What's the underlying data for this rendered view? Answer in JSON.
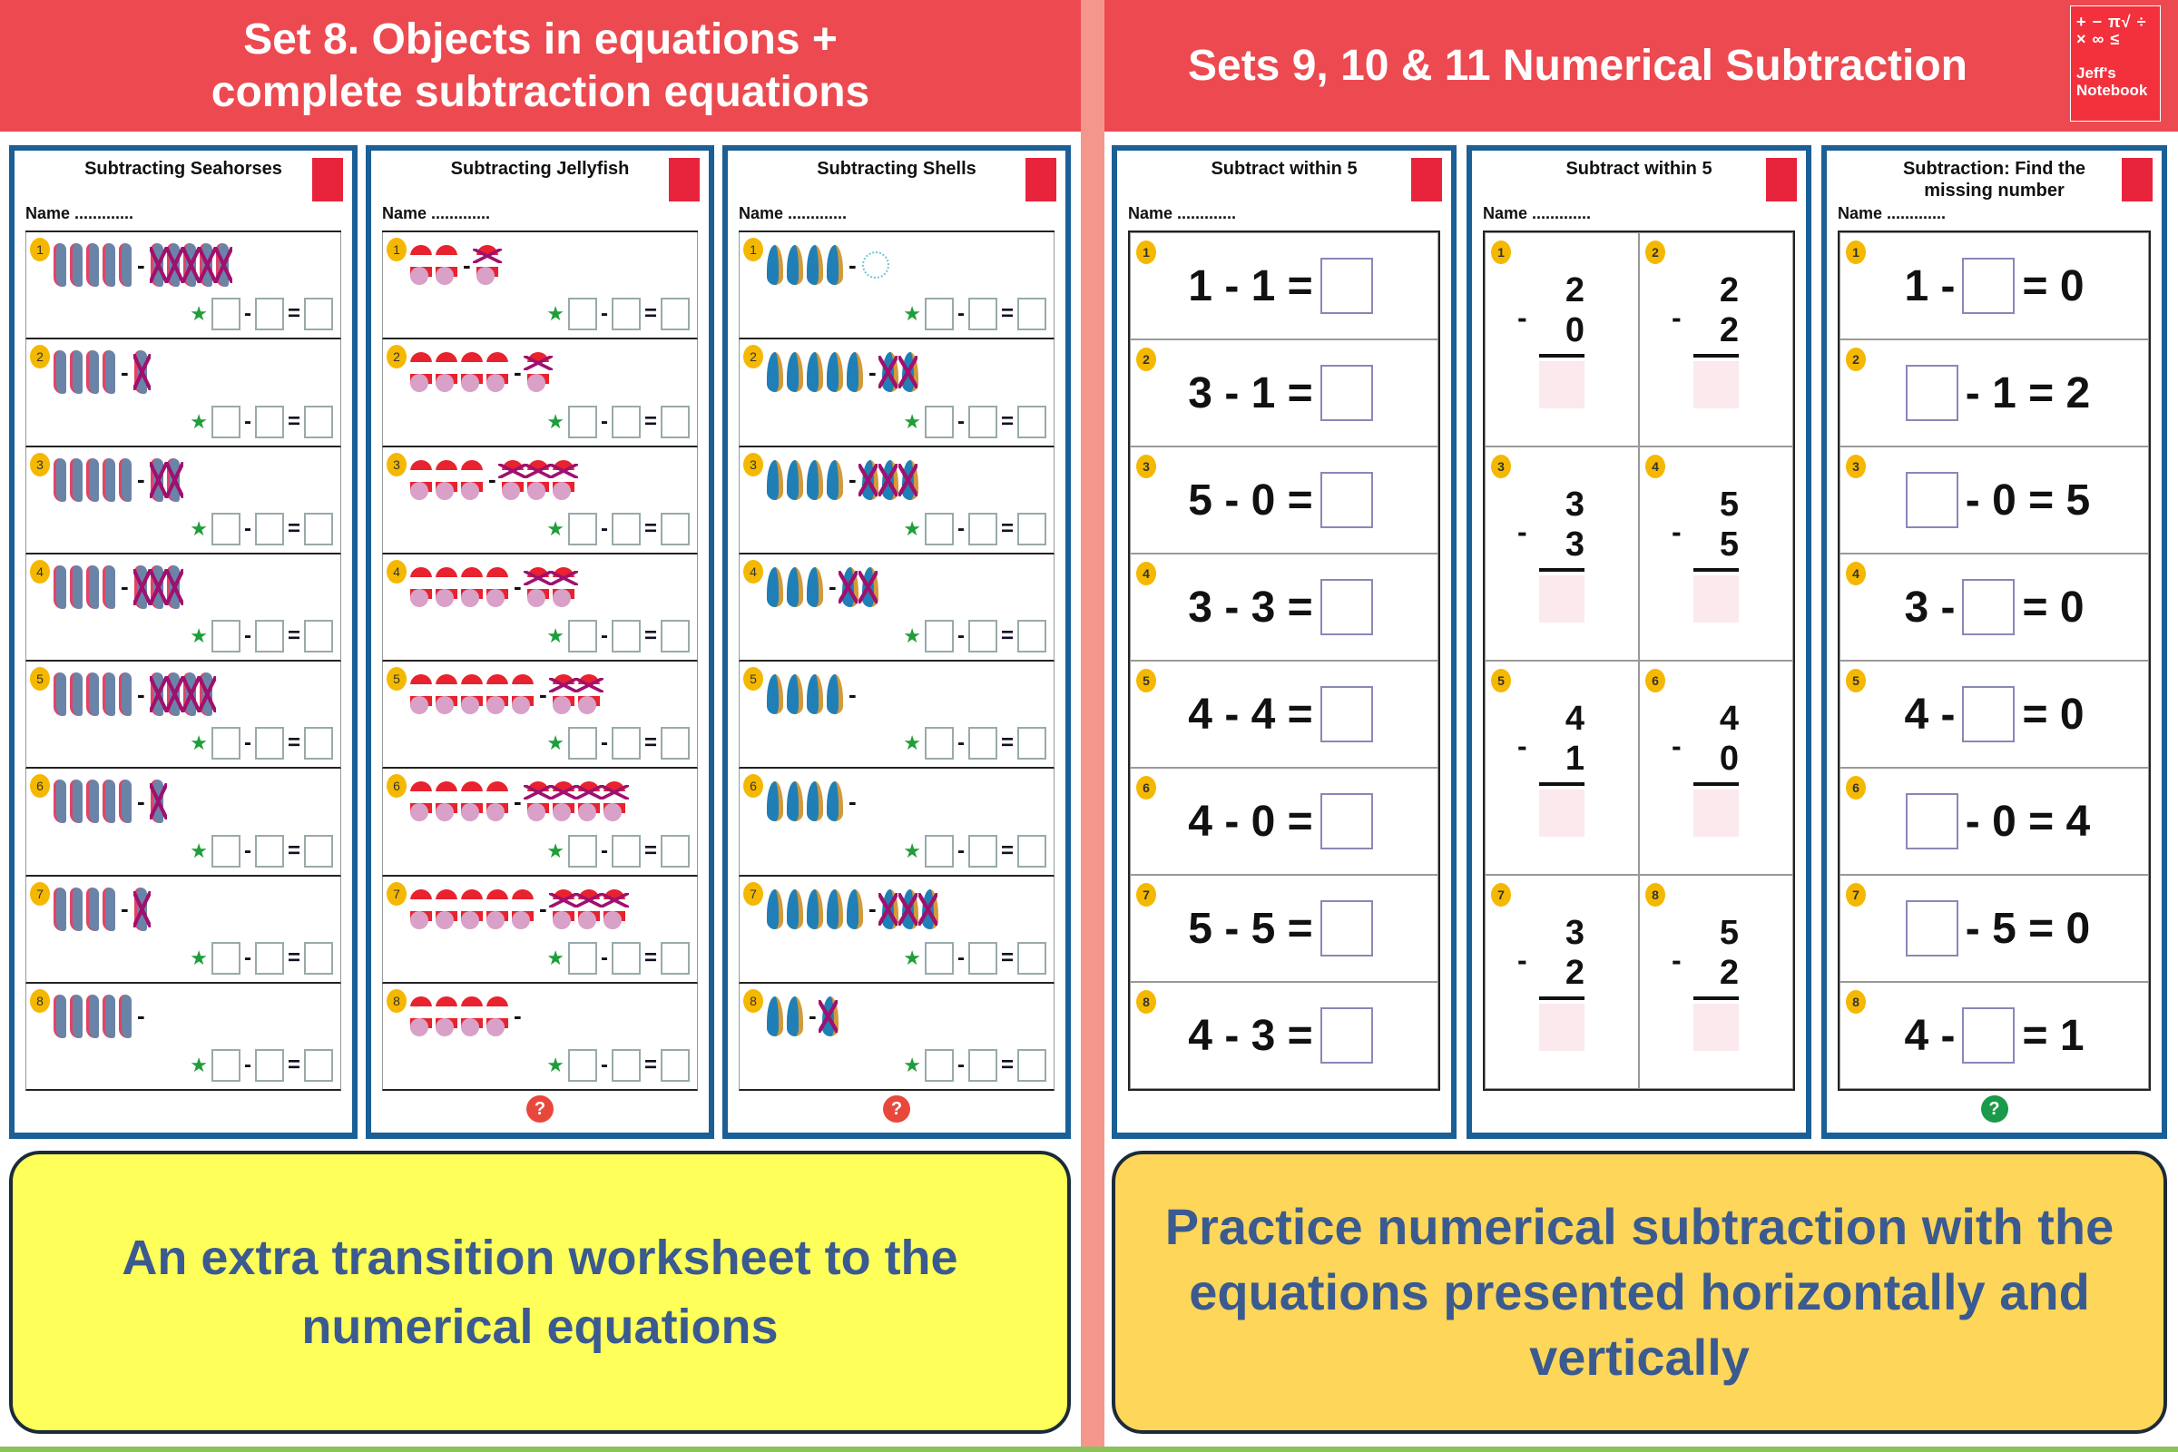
{
  "header_left": {
    "line1": "Set 8. Objects in equations +",
    "line2": "complete subtraction equations"
  },
  "header_right": {
    "title": "Sets 9, 10 & 11 Numerical Subtraction"
  },
  "logo": {
    "symbols": "+ − π√ ÷ × ∞ ≤",
    "line1": "Jeff's",
    "line2": "Notebook"
  },
  "colors": {
    "header": "#ec4a50",
    "divider": "#f5968c",
    "sheet_border": "#1a5f96",
    "banner_left": "#ffff46",
    "banner_right": "#fdd250",
    "banner_text": "#3a5a90"
  },
  "sheets": {
    "seahorses": {
      "title": "Subtracting Seahorses",
      "name_label": "Name .............",
      "object": "seahorse",
      "rows": [
        [
          5,
          5
        ],
        [
          4,
          1
        ],
        [
          5,
          2
        ],
        [
          4,
          3
        ],
        [
          5,
          4
        ],
        [
          5,
          1
        ],
        [
          4,
          1
        ],
        [
          5,
          0
        ]
      ]
    },
    "jellyfish": {
      "title": "Subtracting Jellyfish",
      "name_label": "Name .............",
      "object": "jellyfish",
      "help": "?",
      "rows": [
        [
          2,
          1
        ],
        [
          4,
          1
        ],
        [
          3,
          3
        ],
        [
          4,
          2
        ],
        [
          5,
          2
        ],
        [
          4,
          4
        ],
        [
          5,
          3
        ],
        [
          4,
          0
        ]
      ]
    },
    "shells": {
      "title": "Subtracting Shells",
      "name_label": "Name .............",
      "object": "shell",
      "help": "?",
      "rows": [
        [
          4,
          "bubbles"
        ],
        [
          5,
          2
        ],
        [
          4,
          3
        ],
        [
          3,
          2
        ],
        [
          4,
          0
        ],
        [
          4,
          0
        ],
        [
          5,
          3
        ],
        [
          2,
          1
        ]
      ]
    },
    "horizontal": {
      "title": "Subtract within 5",
      "name_label": "Name .............",
      "items": [
        "1 - 1 =",
        "3 - 1 =",
        "5 - 0 =",
        "3 - 3 =",
        "4 - 4 =",
        "4 - 0 =",
        "5 - 5 =",
        "4 - 3 ="
      ]
    },
    "vertical": {
      "title": "Subtract within 5",
      "name_label": "Name .............",
      "items": [
        [
          "2",
          "0"
        ],
        [
          "2",
          "2"
        ],
        [
          "3",
          "3"
        ],
        [
          "5",
          "5"
        ],
        [
          "4",
          "1"
        ],
        [
          "4",
          "0"
        ],
        [
          "3",
          "2"
        ],
        [
          "5",
          "2"
        ]
      ]
    },
    "missing": {
      "title": "Subtraction: Find the missing number",
      "name_label": "Name .............",
      "help": "?",
      "items": [
        [
          "1 -",
          null,
          "= 0"
        ],
        [
          null,
          "- 1 = 2"
        ],
        [
          null,
          "- 0 = 5"
        ],
        [
          "3 -",
          null,
          "= 0"
        ],
        [
          "4 -",
          null,
          "= 0"
        ],
        [
          null,
          "- 0 = 4"
        ],
        [
          null,
          "- 5 = 0"
        ],
        [
          "4 -",
          null,
          "= 1"
        ]
      ]
    }
  },
  "banner_left": {
    "text": "An extra transition worksheet to the numerical equations"
  },
  "banner_right": {
    "text": "Practice numerical subtraction with the equations presented horizontally and vertically"
  }
}
